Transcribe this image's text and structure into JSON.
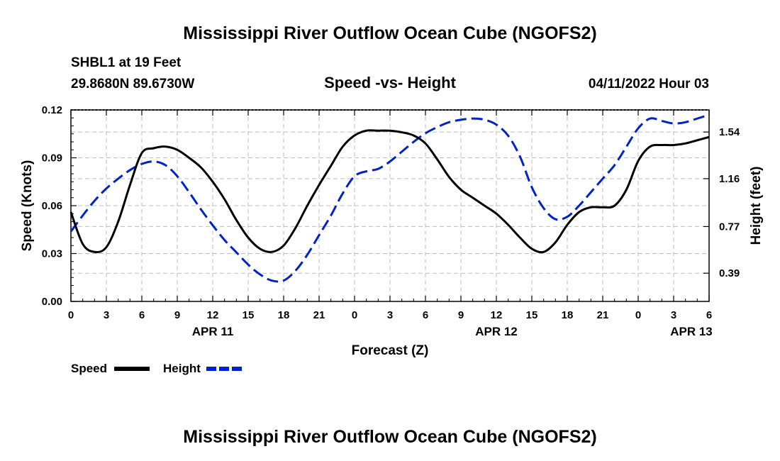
{
  "page": {
    "title": "Mississippi River Outflow Ocean Cube (NGOFS2)",
    "footer_title": "Mississippi River Outflow Ocean Cube (NGOFS2)"
  },
  "station": {
    "name_line": "SHBL1 at 19 Feet",
    "coords_line": "29.8680N  89.6730W",
    "datetime": "04/11/2022 Hour 03"
  },
  "chart_data": {
    "type": "line",
    "title": "Speed -vs- Height",
    "xlabel": "Forecast (Z)",
    "ylabel": "Speed (Knots)",
    "y2label": "Height (feet)",
    "xlim": [
      0,
      54
    ],
    "ylim": [
      0,
      0.12
    ],
    "y2lim": [
      0.16,
      1.72
    ],
    "grid": true,
    "x_ticks": [
      0,
      3,
      6,
      9,
      12,
      15,
      18,
      21,
      24,
      27,
      30,
      33,
      36,
      39,
      42,
      45,
      48,
      51,
      54
    ],
    "x_tick_labels": [
      "0",
      "3",
      "6",
      "9",
      "12",
      "15",
      "18",
      "21",
      "0",
      "3",
      "6",
      "9",
      "12",
      "15",
      "18",
      "21",
      "0",
      "3",
      "6"
    ],
    "y_ticks": [
      0,
      0.03,
      0.06,
      0.09,
      0.12
    ],
    "y_tick_labels": [
      "0.00",
      "0.03",
      "0.06",
      "0.09",
      "0.12"
    ],
    "y2_ticks": [
      0.39,
      0.77,
      1.16,
      1.54
    ],
    "y2_tick_labels": [
      "0.39",
      "0.77",
      "1.16",
      "1.54"
    ],
    "day_labels": [
      {
        "x": 12,
        "label": "APR 11"
      },
      {
        "x": 36,
        "label": "APR 12"
      },
      {
        "x": 52.5,
        "label": "APR 13"
      }
    ],
    "series": [
      {
        "name": "Speed",
        "axis": "left",
        "color": "#000000",
        "dash": "solid",
        "x": [
          0,
          1,
          2,
          3,
          4,
          5,
          6,
          7,
          8,
          9,
          10,
          11,
          12,
          13,
          14,
          15,
          16,
          17,
          18,
          19,
          20,
          21,
          22,
          23,
          24,
          25,
          26,
          27,
          28,
          29,
          30,
          31,
          32,
          33,
          34,
          35,
          36,
          37,
          38,
          39,
          40,
          41,
          42,
          43,
          44,
          45,
          46,
          47,
          48,
          49,
          50,
          51,
          52,
          53,
          54
        ],
        "values": [
          0.056,
          0.036,
          0.031,
          0.034,
          0.05,
          0.073,
          0.093,
          0.096,
          0.097,
          0.095,
          0.09,
          0.084,
          0.075,
          0.064,
          0.051,
          0.04,
          0.033,
          0.031,
          0.035,
          0.046,
          0.06,
          0.073,
          0.085,
          0.097,
          0.104,
          0.107,
          0.107,
          0.107,
          0.106,
          0.104,
          0.099,
          0.089,
          0.078,
          0.07,
          0.065,
          0.06,
          0.055,
          0.048,
          0.04,
          0.033,
          0.031,
          0.037,
          0.048,
          0.056,
          0.059,
          0.059,
          0.06,
          0.07,
          0.088,
          0.097,
          0.098,
          0.098,
          0.099,
          0.101,
          0.103
        ]
      },
      {
        "name": "Height",
        "axis": "right",
        "color": "#0022cc",
        "dash": "dashed",
        "x": [
          0,
          1,
          2,
          3,
          4,
          5,
          6,
          7,
          8,
          9,
          10,
          11,
          12,
          13,
          14,
          15,
          16,
          17,
          18,
          19,
          20,
          21,
          22,
          23,
          24,
          25,
          26,
          27,
          28,
          29,
          30,
          31,
          32,
          33,
          34,
          35,
          36,
          37,
          38,
          39,
          40,
          41,
          42,
          43,
          44,
          45,
          46,
          47,
          48,
          49,
          50,
          51,
          52,
          53,
          54
        ],
        "values": [
          0.73,
          0.86,
          0.98,
          1.08,
          1.16,
          1.23,
          1.28,
          1.3,
          1.27,
          1.18,
          1.05,
          0.91,
          0.78,
          0.66,
          0.56,
          0.46,
          0.38,
          0.33,
          0.33,
          0.41,
          0.54,
          0.7,
          0.86,
          1.04,
          1.18,
          1.22,
          1.24,
          1.3,
          1.38,
          1.46,
          1.53,
          1.58,
          1.62,
          1.64,
          1.65,
          1.64,
          1.6,
          1.51,
          1.34,
          1.09,
          0.92,
          0.83,
          0.85,
          0.94,
          1.05,
          1.16,
          1.27,
          1.42,
          1.57,
          1.65,
          1.63,
          1.61,
          1.62,
          1.65,
          1.68
        ]
      }
    ]
  },
  "legend": {
    "speed_label": "Speed",
    "height_label": "Height"
  }
}
